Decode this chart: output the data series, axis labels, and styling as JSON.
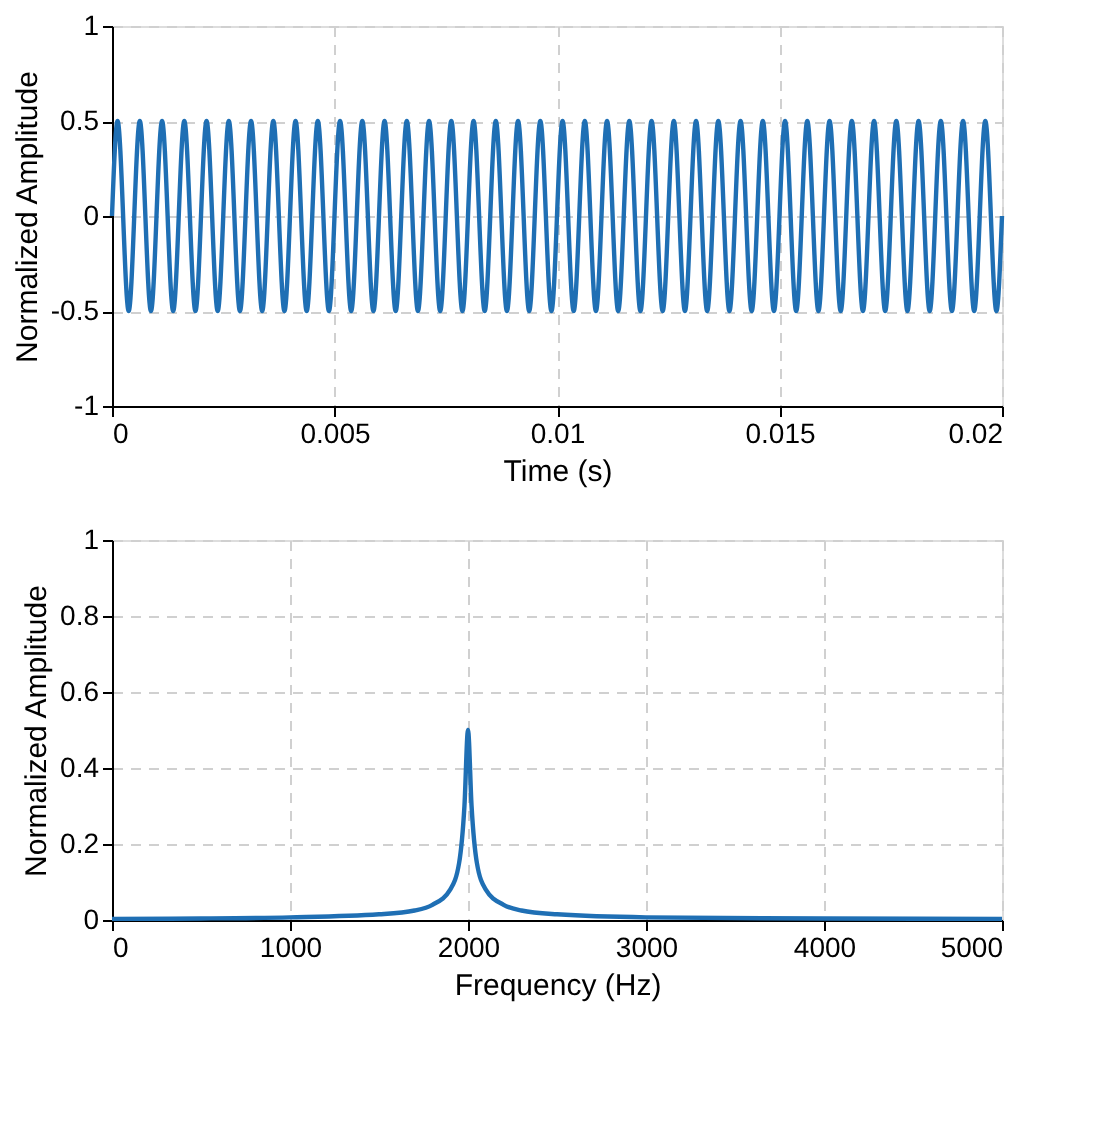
{
  "chart_data": [
    {
      "type": "line",
      "xlabel": "Time (s)",
      "ylabel": "Normalized Amplitude",
      "xlim": [
        0,
        0.02
      ],
      "ylim": [
        -1,
        1
      ],
      "xticks": [
        0,
        0.005,
        0.01,
        0.015,
        0.02
      ],
      "yticks": [
        -1,
        -0.5,
        0,
        0.5,
        1
      ],
      "grid": true,
      "series": [
        {
          "color": "#1f6fb4",
          "x": [
            0,
            0.000125,
            0.000375,
            0.000625,
            0.000875,
            0.001125,
            0.001375,
            0.001625,
            0.001875,
            0.002125,
            0.002375,
            0.002625,
            0.002875,
            0.003125,
            0.003375,
            0.003625,
            0.003875,
            0.004125,
            0.004375,
            0.004625,
            0.004875,
            0.005125,
            0.005375,
            0.005625,
            0.005875,
            0.006125,
            0.006375,
            0.006625,
            0.006875,
            0.007125,
            0.007375,
            0.007625,
            0.007875,
            0.008125,
            0.008375,
            0.008625,
            0.008875,
            0.009125,
            0.009375,
            0.009625,
            0.009875,
            0.010125,
            0.010375,
            0.010625,
            0.010875,
            0.011125,
            0.011375,
            0.011625,
            0.011875,
            0.012125,
            0.012375,
            0.012625,
            0.012875,
            0.013125,
            0.013375,
            0.013625,
            0.013875,
            0.014125,
            0.014375,
            0.014625,
            0.014875,
            0.015125,
            0.015375,
            0.015625,
            0.015875,
            0.016125,
            0.016375,
            0.016625,
            0.016875,
            0.017125,
            0.017375,
            0.017625,
            0.017875,
            0.018125,
            0.018375,
            0.018625,
            0.018875,
            0.019125,
            0.019375,
            0.019625,
            0.019875,
            0.02
          ],
          "values": [
            0,
            0.5,
            -0.5,
            0.5,
            -0.5,
            0.5,
            -0.5,
            0.5,
            -0.5,
            0.5,
            -0.5,
            0.5,
            -0.5,
            0.5,
            -0.5,
            0.5,
            -0.5,
            0.5,
            -0.5,
            0.5,
            -0.5,
            0.5,
            -0.5,
            0.5,
            -0.5,
            0.5,
            -0.5,
            0.5,
            -0.5,
            0.5,
            -0.5,
            0.5,
            -0.5,
            0.5,
            -0.5,
            0.5,
            -0.5,
            0.5,
            -0.5,
            0.5,
            -0.5,
            0.5,
            -0.5,
            0.5,
            -0.5,
            0.5,
            -0.5,
            0.5,
            -0.5,
            0.5,
            -0.5,
            0.5,
            -0.5,
            0.5,
            -0.5,
            0.5,
            -0.5,
            0.5,
            -0.5,
            0.5,
            -0.5,
            0.5,
            -0.5,
            0.5,
            -0.5,
            0.5,
            -0.5,
            0.5,
            -0.5,
            0.5,
            -0.5,
            0.5,
            -0.5,
            0.5,
            -0.5,
            0.5,
            -0.5,
            0.5,
            -0.5,
            0.5,
            -0.5,
            0
          ]
        }
      ]
    },
    {
      "type": "line",
      "xlabel": "Frequency (Hz)",
      "ylabel": "Normalized Amplitude",
      "xlim": [
        0,
        5000
      ],
      "ylim": [
        0,
        1
      ],
      "xticks": [
        0,
        1000,
        2000,
        3000,
        4000,
        5000
      ],
      "yticks": [
        0,
        0.2,
        0.4,
        0.6,
        0.8,
        1
      ],
      "grid": true,
      "series": [
        {
          "color": "#1f6fb4",
          "x": [
            0,
            500,
            1000,
            1500,
            1700,
            1800,
            1900,
            1950,
            1980,
            2000,
            2020,
            2050,
            2100,
            2200,
            2300,
            2500,
            3000,
            4000,
            5000
          ],
          "values": [
            0.003,
            0.004,
            0.007,
            0.015,
            0.025,
            0.04,
            0.08,
            0.15,
            0.3,
            0.5,
            0.3,
            0.15,
            0.08,
            0.04,
            0.025,
            0.015,
            0.007,
            0.004,
            0.003
          ]
        }
      ]
    }
  ]
}
